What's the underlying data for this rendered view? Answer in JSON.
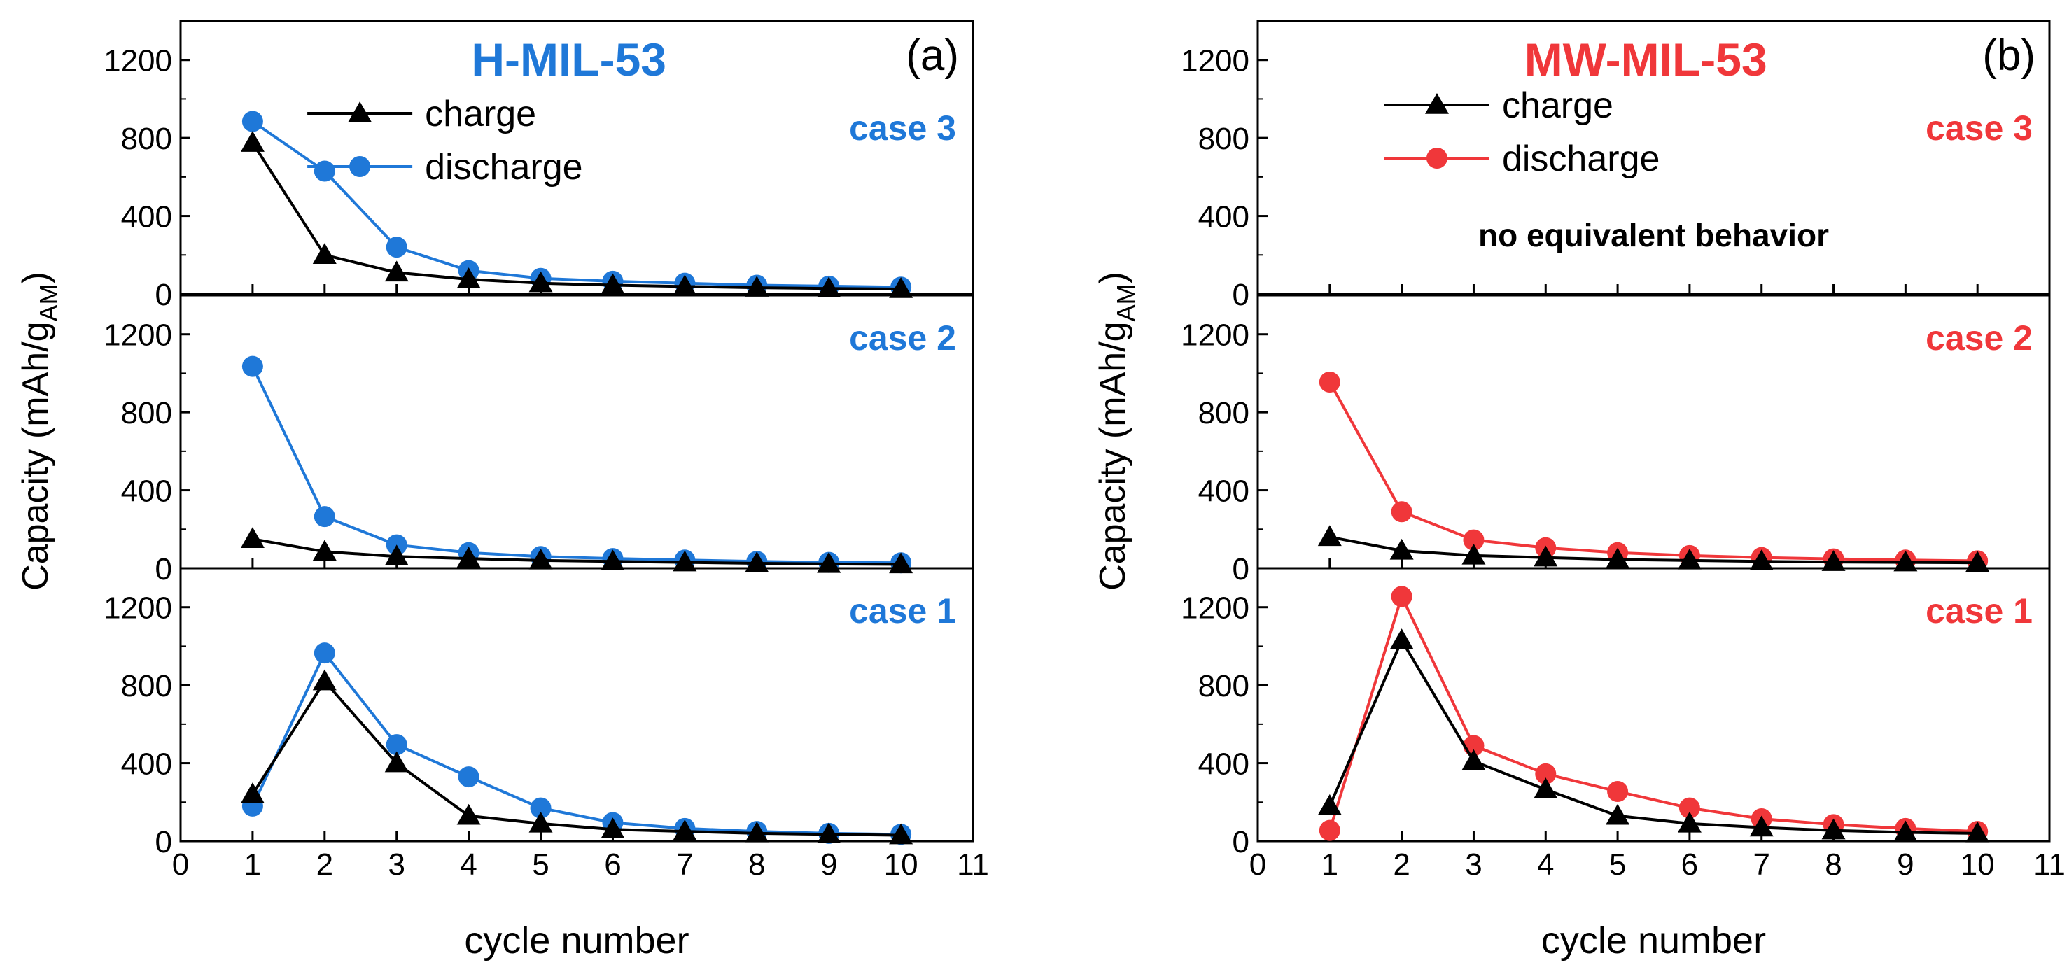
{
  "colors": {
    "charge": "#000000",
    "hmil": "#1f78d8",
    "mwmil": "#f0373a",
    "axis": "#000000"
  },
  "chart_data": [
    {
      "id": "a",
      "type": "line",
      "title": "H-MIL-53",
      "panel_label": "(a)",
      "xlabel": "cycle number",
      "ylabel": "Capacity (mAh/g",
      "ylabel_sub": "AM",
      "ylabel_close": ")",
      "xlim": [
        0,
        11
      ],
      "ylim": [
        0,
        1400
      ],
      "x_ticks": [
        "0",
        "1",
        "2",
        "3",
        "4",
        "5",
        "6",
        "7",
        "8",
        "9",
        "10",
        "11"
      ],
      "y_ticks": [
        "0",
        "400",
        "800",
        "1200"
      ],
      "accent": "#1f78d8",
      "legend": {
        "charge": "charge",
        "discharge": "discharge"
      },
      "subplots": [
        {
          "case_label": "case 3",
          "series": [
            {
              "name": "charge",
              "x": [
                1,
                2,
                3,
                4,
                5,
                6,
                7,
                8,
                9,
                10
              ],
              "values": [
                775,
                200,
                110,
                75,
                55,
                45,
                38,
                32,
                28,
                25
              ]
            },
            {
              "name": "discharge",
              "x": [
                1,
                2,
                3,
                4,
                5,
                6,
                7,
                8,
                9,
                10
              ],
              "values": [
                885,
                630,
                240,
                120,
                80,
                65,
                55,
                45,
                40,
                35
              ]
            }
          ]
        },
        {
          "case_label": "case 2",
          "series": [
            {
              "name": "charge",
              "x": [
                1,
                2,
                3,
                4,
                5,
                6,
                7,
                8,
                9,
                10
              ],
              "values": [
                150,
                85,
                60,
                50,
                40,
                35,
                30,
                25,
                22,
                20
              ]
            },
            {
              "name": "discharge",
              "x": [
                1,
                2,
                3,
                4,
                5,
                6,
                7,
                8,
                9,
                10
              ],
              "values": [
                1035,
                265,
                120,
                80,
                60,
                50,
                42,
                35,
                30,
                28
              ]
            }
          ]
        },
        {
          "case_label": "case 1",
          "series": [
            {
              "name": "charge",
              "x": [
                1,
                2,
                3,
                4,
                5,
                6,
                7,
                8,
                9,
                10
              ],
              "values": [
                240,
                820,
                400,
                130,
                90,
                60,
                50,
                40,
                35,
                30
              ]
            },
            {
              "name": "discharge",
              "x": [
                1,
                2,
                3,
                4,
                5,
                6,
                7,
                8,
                9,
                10
              ],
              "values": [
                180,
                965,
                495,
                330,
                170,
                95,
                65,
                50,
                40,
                35
              ]
            }
          ]
        }
      ]
    },
    {
      "id": "b",
      "type": "line",
      "title": "MW-MIL-53",
      "panel_label": "(b)",
      "xlabel": "cycle number",
      "ylabel": "Capacity (mAh/g",
      "ylabel_sub": "AM",
      "ylabel_close": ")",
      "xlim": [
        0,
        11
      ],
      "ylim": [
        0,
        1400
      ],
      "x_ticks": [
        "0",
        "1",
        "2",
        "3",
        "4",
        "5",
        "6",
        "7",
        "8",
        "9",
        "10",
        "11"
      ],
      "y_ticks": [
        "0",
        "400",
        "800",
        "1200"
      ],
      "accent": "#f0373a",
      "legend": {
        "charge": "charge",
        "discharge": "discharge"
      },
      "subplots": [
        {
          "case_label": "case 3",
          "note": "no equivalent behavior",
          "series": []
        },
        {
          "case_label": "case 2",
          "series": [
            {
              "name": "charge",
              "x": [
                1,
                2,
                3,
                4,
                5,
                6,
                7,
                8,
                9,
                10
              ],
              "values": [
                160,
                90,
                65,
                55,
                45,
                40,
                35,
                32,
                30,
                28
              ]
            },
            {
              "name": "discharge",
              "x": [
                1,
                2,
                3,
                4,
                5,
                6,
                7,
                8,
                9,
                10
              ],
              "values": [
                955,
                290,
                145,
                105,
                80,
                65,
                55,
                48,
                42,
                38
              ]
            }
          ]
        },
        {
          "case_label": "case 1",
          "series": [
            {
              "name": "charge",
              "x": [
                1,
                2,
                3,
                4,
                5,
                6,
                7,
                8,
                9,
                10
              ],
              "values": [
                180,
                1030,
                410,
                265,
                130,
                90,
                70,
                55,
                45,
                40
              ]
            },
            {
              "name": "discharge",
              "x": [
                1,
                2,
                3,
                4,
                5,
                6,
                7,
                8,
                9,
                10
              ],
              "values": [
                55,
                1255,
                490,
                345,
                255,
                170,
                115,
                85,
                65,
                50
              ]
            }
          ]
        }
      ]
    }
  ]
}
